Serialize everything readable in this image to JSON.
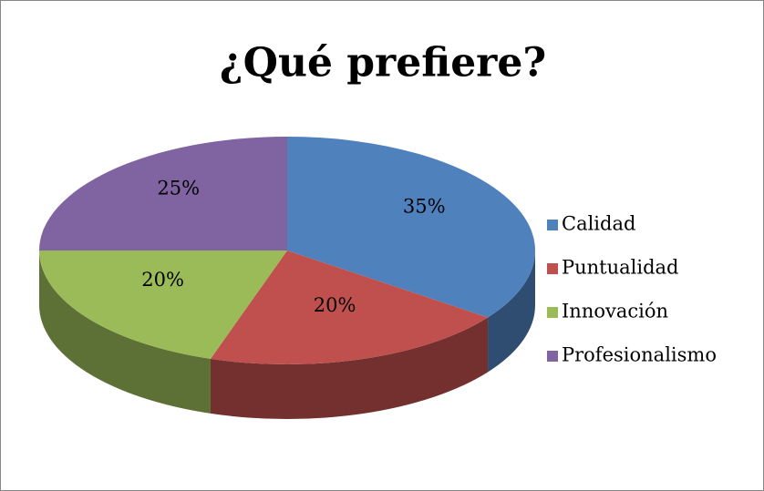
{
  "chart_data": {
    "type": "pie",
    "title": "¿Qué prefiere?",
    "categories": [
      "Calidad",
      "Puntualidad",
      "Innovación",
      "Profesionalismo"
    ],
    "values": [
      35,
      20,
      20,
      25
    ],
    "value_labels": [
      "35%",
      "20%",
      "20%",
      "25%"
    ],
    "colors": [
      "#4f81bd",
      "#c0504d",
      "#9bbb59",
      "#8064a2"
    ],
    "legend": "right"
  }
}
